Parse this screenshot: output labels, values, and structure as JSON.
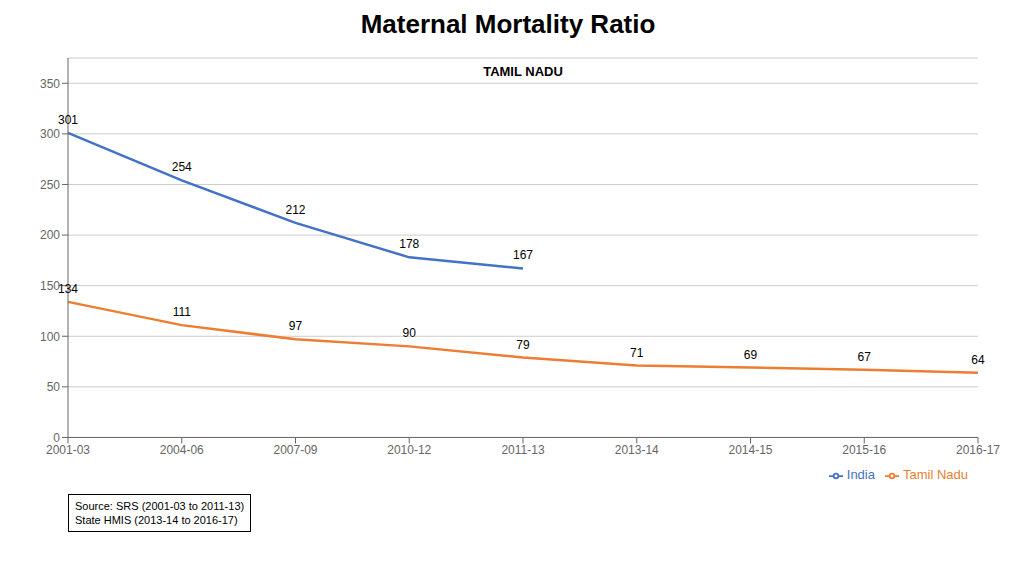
{
  "chart_data": {
    "type": "line",
    "title": "Maternal Mortality Ratio",
    "subtitle": "TAMIL NADU",
    "categories": [
      "2001-03",
      "2004-06",
      "2007-09",
      "2010-12",
      "2011-13",
      "2013-14",
      "2014-15",
      "2015-16",
      "2016-17"
    ],
    "series": [
      {
        "name": "India",
        "color": "#4472C4",
        "values": [
          301,
          254,
          212,
          178,
          167,
          null,
          null,
          null,
          null
        ]
      },
      {
        "name": "Tamil Nadu",
        "color": "#ED7D31",
        "values": [
          134,
          111,
          97,
          90,
          79,
          71,
          69,
          67,
          64
        ]
      }
    ],
    "ylim": [
      0,
      375
    ],
    "yticks": [
      0,
      50,
      100,
      150,
      200,
      250,
      300,
      350
    ],
    "grid": true,
    "legend": "lower right",
    "data_labels": true,
    "annotations": [
      "Source: SRS (2001-03 to 2011-13)\nState HMIS (2013-14 to 2016-17)"
    ]
  }
}
